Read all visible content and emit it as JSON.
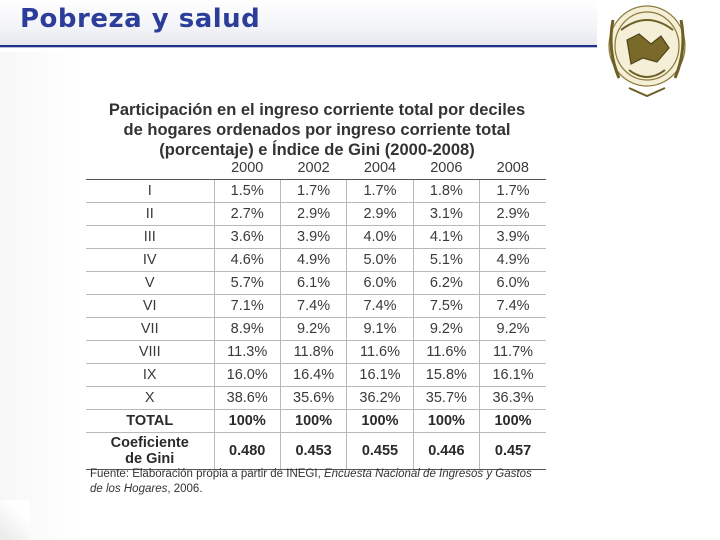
{
  "header": {
    "title": "Pobreza y salud",
    "accent_color": "#2c3d9a"
  },
  "table": {
    "title_lines": [
      "Participación en el ingreso corriente total por deciles",
      "de hogares ordenados por ingreso corriente total",
      "(porcentaje) e Índice de Gini (2000-2008)"
    ],
    "years": [
      "2000",
      "2002",
      "2004",
      "2006",
      "2008"
    ],
    "rows": [
      {
        "label": "I",
        "values": [
          "1.5%",
          "1.7%",
          "1.7%",
          "1.8%",
          "1.7%"
        ]
      },
      {
        "label": "II",
        "values": [
          "2.7%",
          "2.9%",
          "2.9%",
          "3.1%",
          "2.9%"
        ]
      },
      {
        "label": "III",
        "values": [
          "3.6%",
          "3.9%",
          "4.0%",
          "4.1%",
          "3.9%"
        ]
      },
      {
        "label": "IV",
        "values": [
          "4.6%",
          "4.9%",
          "5.0%",
          "5.1%",
          "4.9%"
        ]
      },
      {
        "label": "V",
        "values": [
          "5.7%",
          "6.1%",
          "6.0%",
          "6.2%",
          "6.0%"
        ]
      },
      {
        "label": "VI",
        "values": [
          "7.1%",
          "7.4%",
          "7.4%",
          "7.5%",
          "7.4%"
        ]
      },
      {
        "label": "VII",
        "values": [
          "8.9%",
          "9.2%",
          "9.1%",
          "9.2%",
          "9.2%"
        ]
      },
      {
        "label": "VIII",
        "values": [
          "11.3%",
          "11.8%",
          "11.6%",
          "11.6%",
          "11.7%"
        ]
      },
      {
        "label": "IX",
        "values": [
          "16.0%",
          "16.4%",
          "16.1%",
          "15.8%",
          "16.1%"
        ]
      },
      {
        "label": "X",
        "values": [
          "38.6%",
          "35.6%",
          "36.2%",
          "35.7%",
          "36.3%"
        ]
      }
    ],
    "total": {
      "label": "TOTAL",
      "values": [
        "100%",
        "100%",
        "100%",
        "100%",
        "100%"
      ]
    },
    "gini": {
      "label_line1": "Coeficiente",
      "label_line2": "de Gini",
      "values": [
        "0.480",
        "0.453",
        "0.455",
        "0.446",
        "0.457"
      ]
    },
    "source": {
      "prefix": "Fuente: Elaboración propia a partir de INEGI, ",
      "italic": "Encuesta Nacional de Ingresos y Gastos de los Hogares",
      "suffix": ", 2006."
    }
  }
}
